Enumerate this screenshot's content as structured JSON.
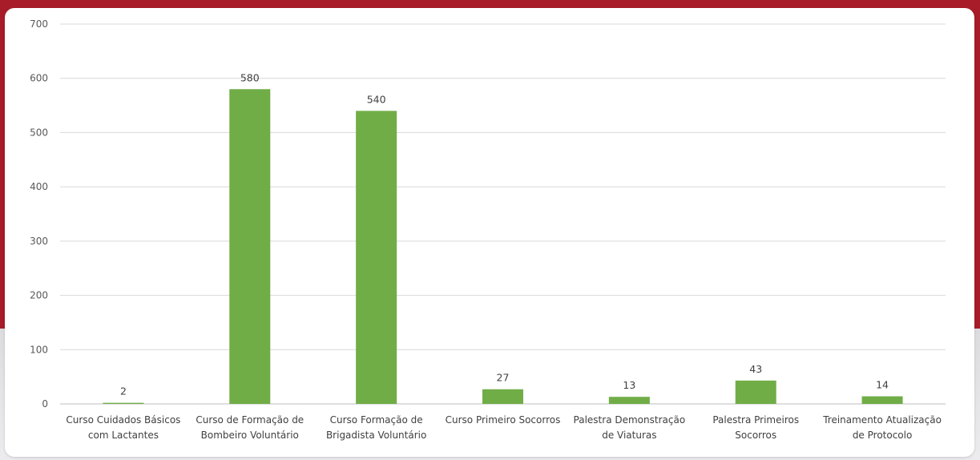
{
  "colors": {
    "bar": "#70ad47",
    "grid": "#d9d9d9",
    "axis": "#bfbfbf",
    "background_red": "#a71c28"
  },
  "chart_data": {
    "type": "bar",
    "title": "",
    "xlabel": "",
    "ylabel": "",
    "categories": [
      [
        "Curso Cuidados Básicos",
        "com Lactantes"
      ],
      [
        "Curso de Formação de",
        "Bombeiro Voluntário"
      ],
      [
        "Curso Formação de",
        "Brigadista Voluntário"
      ],
      [
        "Curso Primeiro Socorros"
      ],
      [
        "Palestra Demonstração",
        "de Viaturas"
      ],
      [
        "Palestra Primeiros",
        "Socorros"
      ],
      [
        "Treinamento Atualização",
        "de Protocolo"
      ]
    ],
    "values": [
      2,
      580,
      540,
      27,
      13,
      43,
      14
    ],
    "ylim": [
      0,
      700
    ],
    "yticks": [
      "0",
      "100",
      "200",
      "300",
      "400",
      "500",
      "600",
      "700"
    ],
    "grid": true,
    "legend": "none"
  }
}
